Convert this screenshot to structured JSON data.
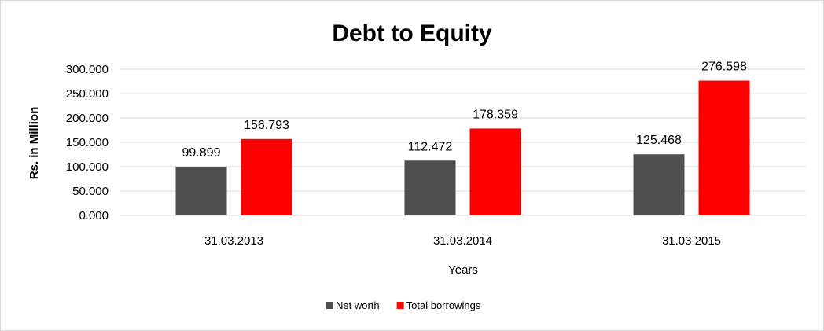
{
  "chart_data": {
    "type": "bar",
    "title": "Debt to Equity",
    "xlabel": "Years",
    "ylabel": "Rs. in Million",
    "categories": [
      "31.03.2013",
      "31.03.2014",
      "31.03.2015"
    ],
    "series": [
      {
        "name": "Net worth",
        "color": "#4f4f4f",
        "values": [
          99.899,
          112.472,
          125.468
        ],
        "labels": [
          "99.899",
          "112.472",
          "125.468"
        ]
      },
      {
        "name": "Total borrowings",
        "color": "#ff0000",
        "values": [
          156.793,
          178.359,
          276.598
        ],
        "labels": [
          "156.793",
          "178.359",
          "276.598"
        ]
      }
    ],
    "ylim": [
      0,
      300
    ],
    "yticks": [
      "0.000",
      "50.000",
      "100.000",
      "150.000",
      "200.000",
      "250.000",
      "300.000"
    ],
    "grid": true,
    "legend_position": "bottom"
  }
}
